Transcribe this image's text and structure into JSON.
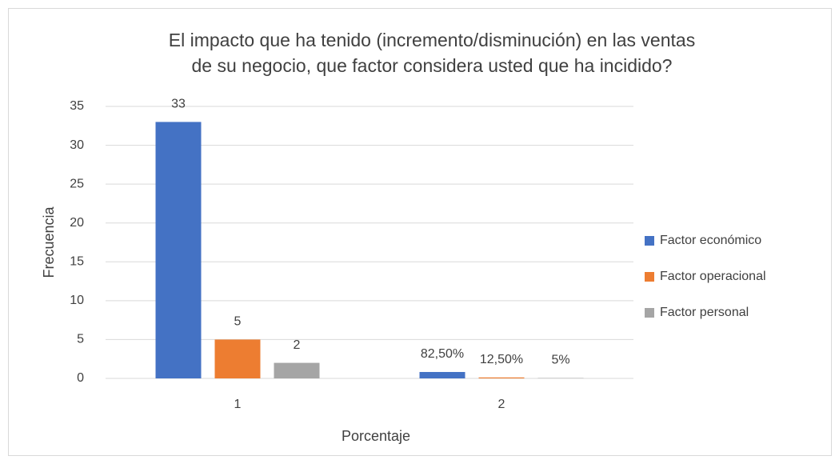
{
  "chart_data": {
    "type": "bar",
    "title": [
      "El impacto que ha tenido (incremento/disminución) en las ventas",
      "de su negocio, que factor considera usted que ha incidido?"
    ],
    "x_label": "Porcentaje",
    "y_label": "Frecuencia",
    "categories": [
      "1",
      "2"
    ],
    "series": [
      {
        "name": "Factor económico",
        "color": "#4472c4",
        "values": [
          33,
          0.825
        ],
        "value_labels": [
          "33",
          "82,50%"
        ]
      },
      {
        "name": "Factor operacional",
        "color": "#ed7d31",
        "values": [
          5,
          0.125
        ],
        "value_labels": [
          "5",
          "12,50%"
        ]
      },
      {
        "name": "Factor personal",
        "color": "#a5a5a5",
        "values": [
          2,
          0.05
        ],
        "value_labels": [
          "2",
          "5%"
        ]
      }
    ],
    "ylim": [
      0,
      35
    ],
    "yticks": [
      0,
      5,
      10,
      15,
      20,
      25,
      30,
      35
    ],
    "grid": true,
    "legend": "right"
  }
}
